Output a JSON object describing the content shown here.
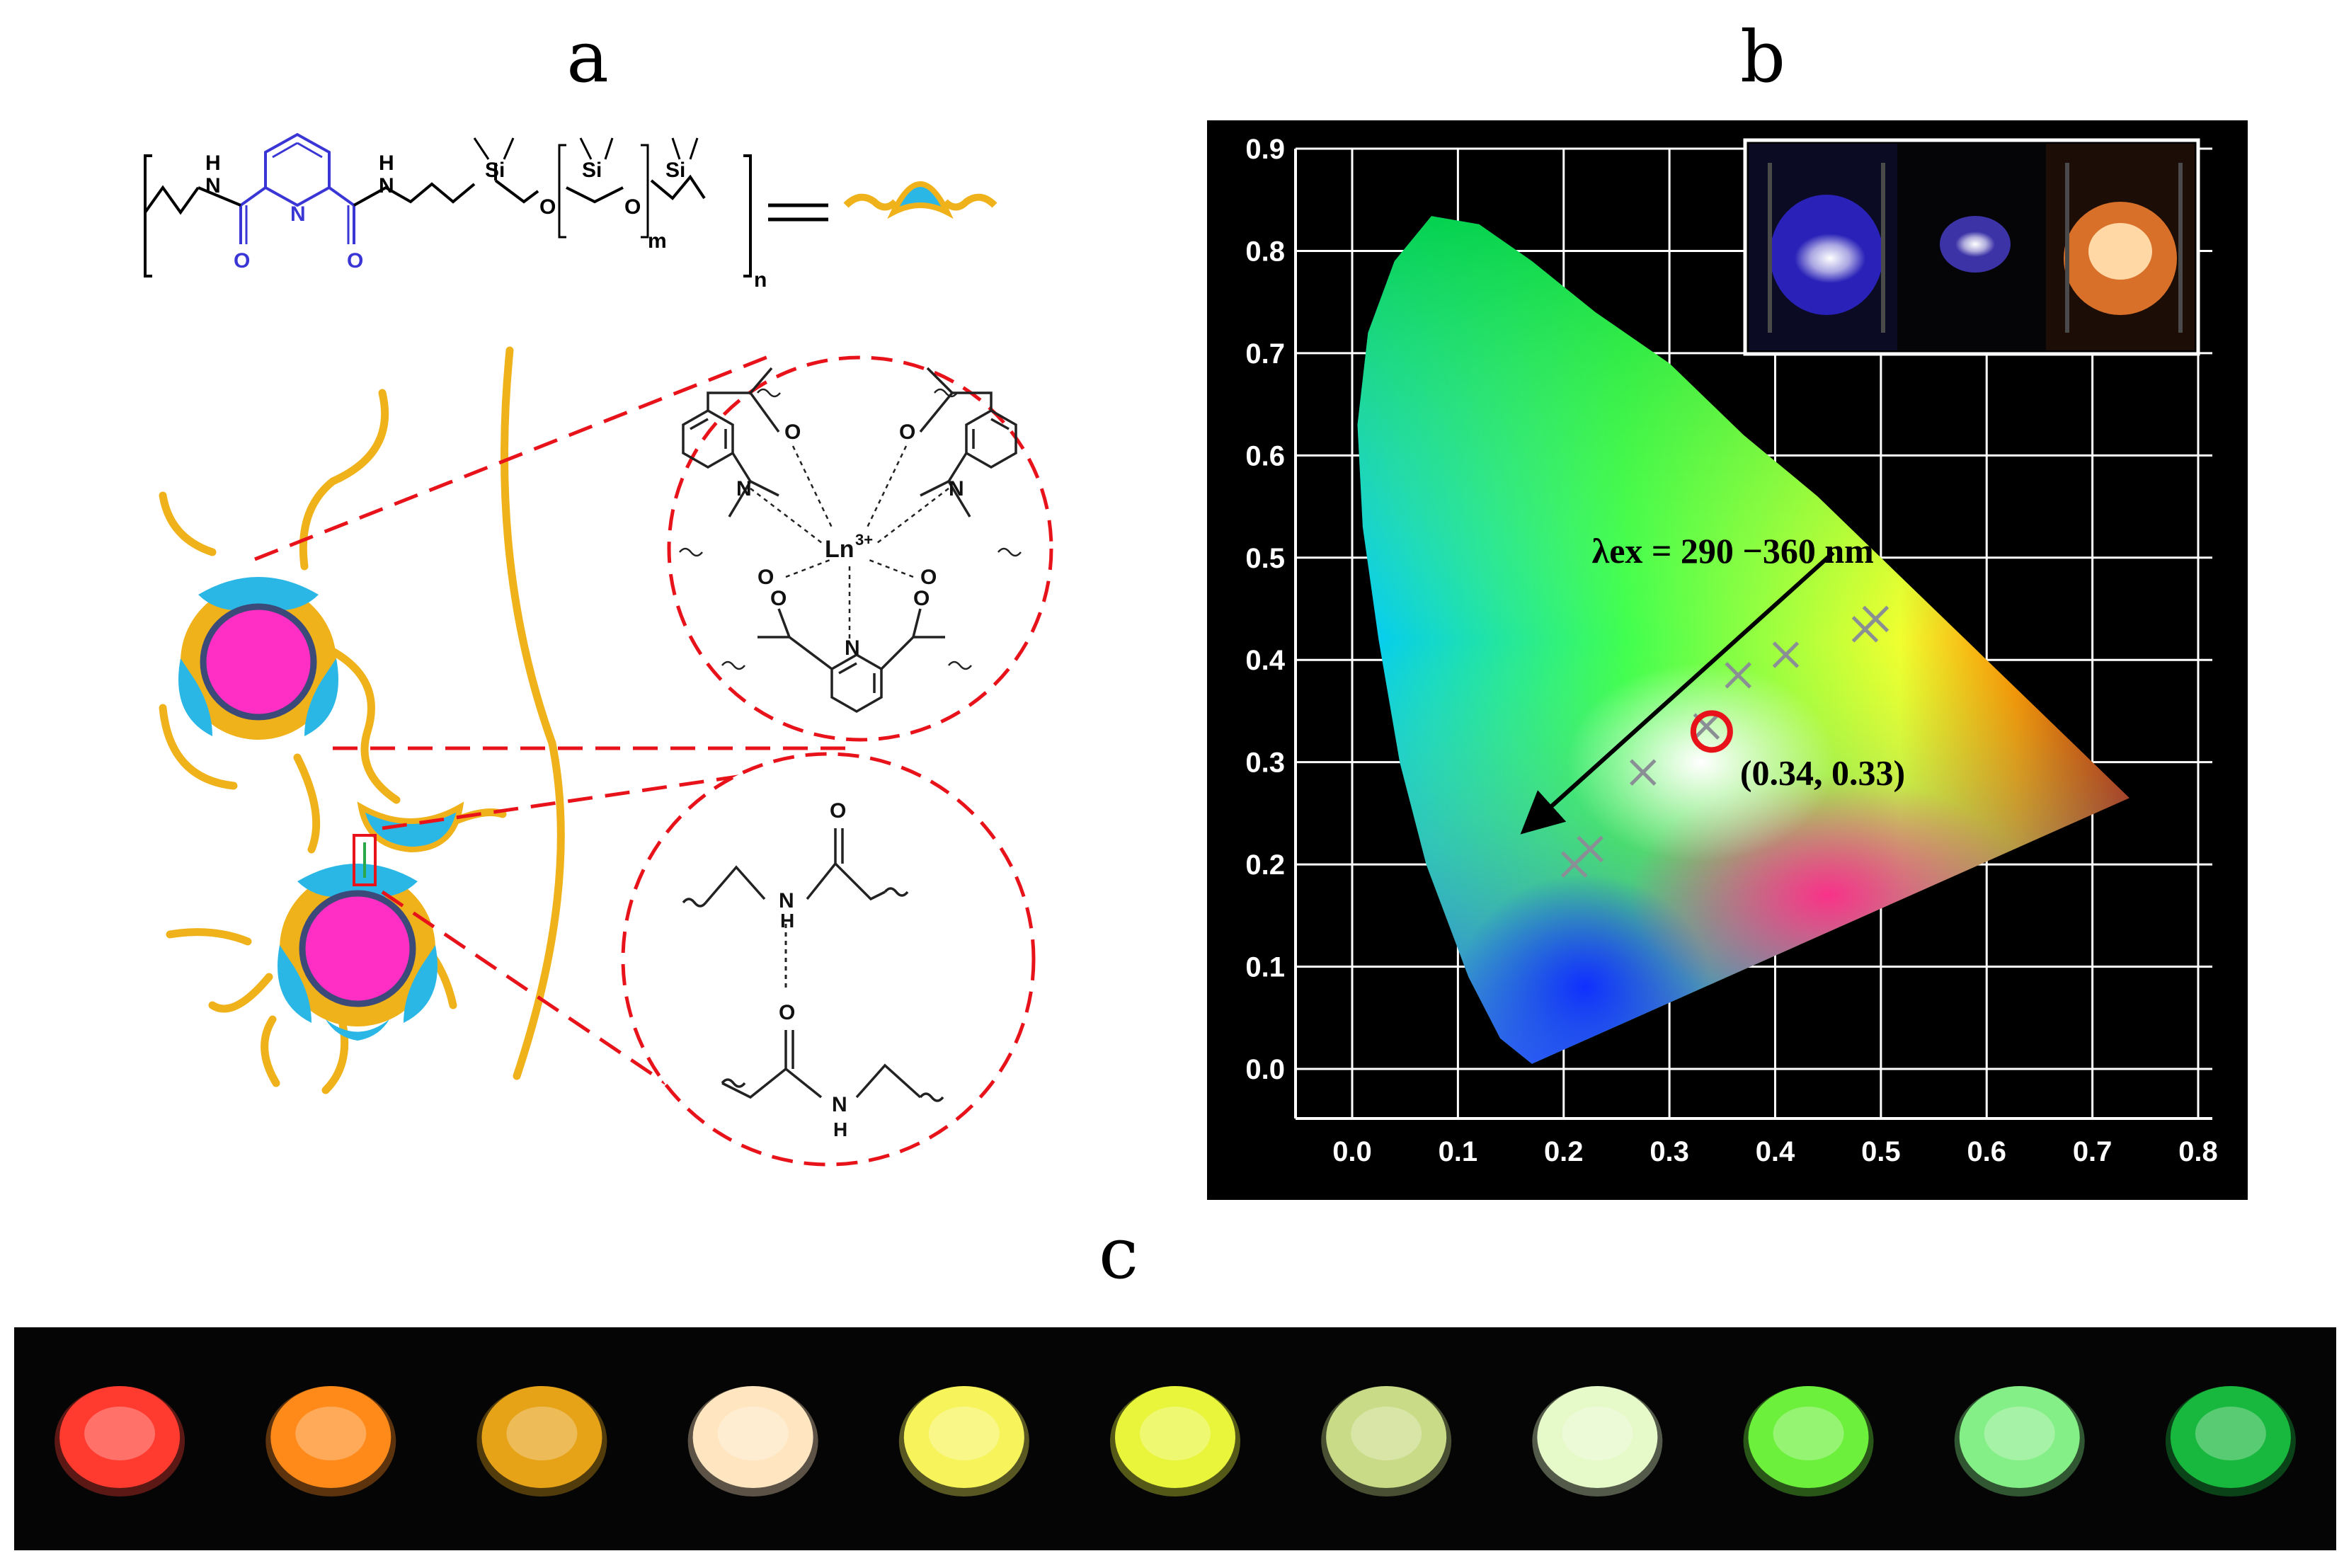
{
  "figure": {
    "panel_a": {
      "label": "a",
      "polymer_atoms": {
        "nh1": "H",
        "n1": "N",
        "nh2": "N",
        "h2": "H",
        "n_py": "N",
        "o1": "O",
        "o2": "O",
        "si1": "Si",
        "o3": "O",
        "si2": "Si",
        "o4": "O",
        "si3": "Si",
        "m": "m",
        "n": "n"
      },
      "complex_atoms": {
        "ln": "Ln",
        "ln_charge": "3+",
        "n_left": "N",
        "n_right": "N",
        "n_bottom": "N",
        "o_tl": "O",
        "o_tr": "O",
        "o_ml": "O",
        "o_mr": "O",
        "o_bl": "O",
        "o_br": "O"
      },
      "hbond_atoms": {
        "o_top": "O",
        "nh_top": "N",
        "h_top": "H",
        "o_bot": "O",
        "nh_bot": "N",
        "h_bot": "H"
      }
    },
    "panel_b": {
      "label": "b",
      "annotation": "λex = 290 −360 nm",
      "point_label": "(0.34, 0.33)",
      "inset": "photographs of three luminescent samples",
      "colors": {
        "plot_bg": "#000000",
        "grid": "#ffffff",
        "highlight": "#e8131a",
        "marker": "#8a8f95"
      }
    },
    "panel_c": {
      "label": "c",
      "samples": [
        {
          "color": "#ff3b30"
        },
        {
          "color": "#ff8a1a"
        },
        {
          "color": "#e6a318"
        },
        {
          "color": "#ffe6c0"
        },
        {
          "color": "#f6f45a"
        },
        {
          "color": "#e8f53a"
        },
        {
          "color": "#c9db86"
        },
        {
          "color": "#e6f9c8"
        },
        {
          "color": "#6cf03c"
        },
        {
          "color": "#84ef86"
        },
        {
          "color": "#18b83e"
        }
      ]
    }
  },
  "chart_data": {
    "type": "scatter",
    "title": "",
    "xlabel": "",
    "ylabel": "",
    "xlim": [
      0.0,
      0.8
    ],
    "ylim": [
      0.0,
      0.9
    ],
    "x_ticks": [
      "0.0",
      "0.1",
      "0.2",
      "0.3",
      "0.4",
      "0.5",
      "0.6",
      "0.7",
      "0.8"
    ],
    "y_ticks": [
      "0.0",
      "0.1",
      "0.2",
      "0.3",
      "0.4",
      "0.5",
      "0.6",
      "0.7",
      "0.8",
      "0.9"
    ],
    "grid": true,
    "series": [
      {
        "x": [
          0.21,
          0.225,
          0.275,
          0.335,
          0.365,
          0.41,
          0.485,
          0.495
        ],
        "y": [
          0.2,
          0.215,
          0.29,
          0.335,
          0.385,
          0.405,
          0.43,
          0.44
        ]
      }
    ],
    "highlight": {
      "x": 0.34,
      "y": 0.33
    },
    "arrow": {
      "from": [
        0.455,
        0.505
      ],
      "to": [
        0.165,
        0.235
      ]
    }
  }
}
